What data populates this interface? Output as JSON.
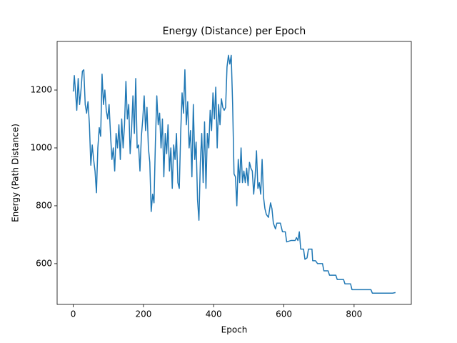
{
  "chart_data": {
    "type": "line",
    "title": "Energy (Distance) per Epoch",
    "x_label": "Epoch",
    "y_label": "Energy (Path Distance)",
    "color": "#1f77b4",
    "xlim": [
      -46,
      963
    ],
    "ylim": [
      459,
      1368
    ],
    "xticks": [
      0,
      200,
      400,
      600,
      800
    ],
    "yticks": [
      600,
      800,
      1000,
      1200
    ],
    "x": [
      0,
      3,
      6,
      10,
      14,
      18,
      22,
      26,
      30,
      34,
      38,
      42,
      46,
      50,
      54,
      58,
      62,
      66,
      70,
      74,
      78,
      82,
      86,
      90,
      94,
      98,
      102,
      106,
      110,
      114,
      118,
      122,
      126,
      130,
      134,
      138,
      142,
      146,
      150,
      154,
      158,
      162,
      166,
      170,
      174,
      178,
      182,
      186,
      190,
      194,
      198,
      202,
      206,
      210,
      214,
      218,
      222,
      226,
      230,
      234,
      238,
      242,
      246,
      250,
      254,
      258,
      262,
      266,
      270,
      274,
      278,
      282,
      286,
      290,
      294,
      298,
      302,
      306,
      310,
      314,
      318,
      322,
      326,
      330,
      334,
      338,
      342,
      346,
      350,
      354,
      358,
      362,
      366,
      370,
      374,
      378,
      382,
      386,
      390,
      394,
      398,
      402,
      406,
      410,
      414,
      418,
      422,
      426,
      430,
      434,
      438,
      442,
      446,
      450,
      454,
      458,
      462,
      466,
      470,
      474,
      478,
      482,
      486,
      490,
      494,
      498,
      502,
      506,
      510,
      514,
      518,
      522,
      526,
      530,
      534,
      538,
      542,
      546,
      550,
      556,
      562,
      566,
      570,
      576,
      580,
      590,
      596,
      604,
      608,
      620,
      632,
      636,
      640,
      644,
      648,
      656,
      660,
      666,
      670,
      680,
      682,
      690,
      696,
      710,
      714,
      726,
      730,
      748,
      752,
      770,
      774,
      790,
      794,
      848,
      852,
      910,
      918
    ],
    "values": [
      1195,
      1250,
      1200,
      1130,
      1240,
      1150,
      1200,
      1265,
      1270,
      1150,
      1120,
      1160,
      1080,
      940,
      1010,
      960,
      920,
      845,
      1000,
      1070,
      1040,
      1255,
      1150,
      1200,
      1130,
      1100,
      1150,
      1050,
      960,
      1000,
      920,
      1050,
      1000,
      1080,
      960,
      1100,
      1000,
      1080,
      1230,
      1100,
      1150,
      980,
      1060,
      1180,
      1050,
      1240,
      1000,
      1010,
      920,
      1040,
      1100,
      1180,
      1060,
      1140,
      1000,
      950,
      780,
      840,
      810,
      1020,
      1180,
      1080,
      1120,
      1000,
      1100,
      900,
      1050,
      980,
      1080,
      920,
      1000,
      860,
      1010,
      960,
      1050,
      880,
      860,
      1050,
      1190,
      1120,
      1270,
      1080,
      1160,
      1000,
      1060,
      900,
      1150,
      960,
      1020,
      820,
      750,
      950,
      1050,
      880,
      1090,
      860,
      1050,
      1000,
      1130,
      1060,
      1190,
      1100,
      1210,
      1000,
      1150,
      1080,
      1170,
      1140,
      1130,
      1140,
      1280,
      1320,
      1290,
      1320,
      1150,
      910,
      900,
      800,
      960,
      880,
      1000,
      880,
      920,
      880,
      930,
      870,
      950,
      930,
      920,
      840,
      900,
      990,
      860,
      880,
      840,
      960,
      830,
      790,
      770,
      760,
      810,
      790,
      740,
      720,
      740,
      740,
      710,
      710,
      675,
      680,
      680,
      690,
      680,
      710,
      650,
      650,
      615,
      620,
      650,
      650,
      610,
      610,
      600,
      600,
      575,
      575,
      560,
      560,
      545,
      545,
      530,
      530,
      510,
      510,
      498,
      498,
      500
    ]
  }
}
